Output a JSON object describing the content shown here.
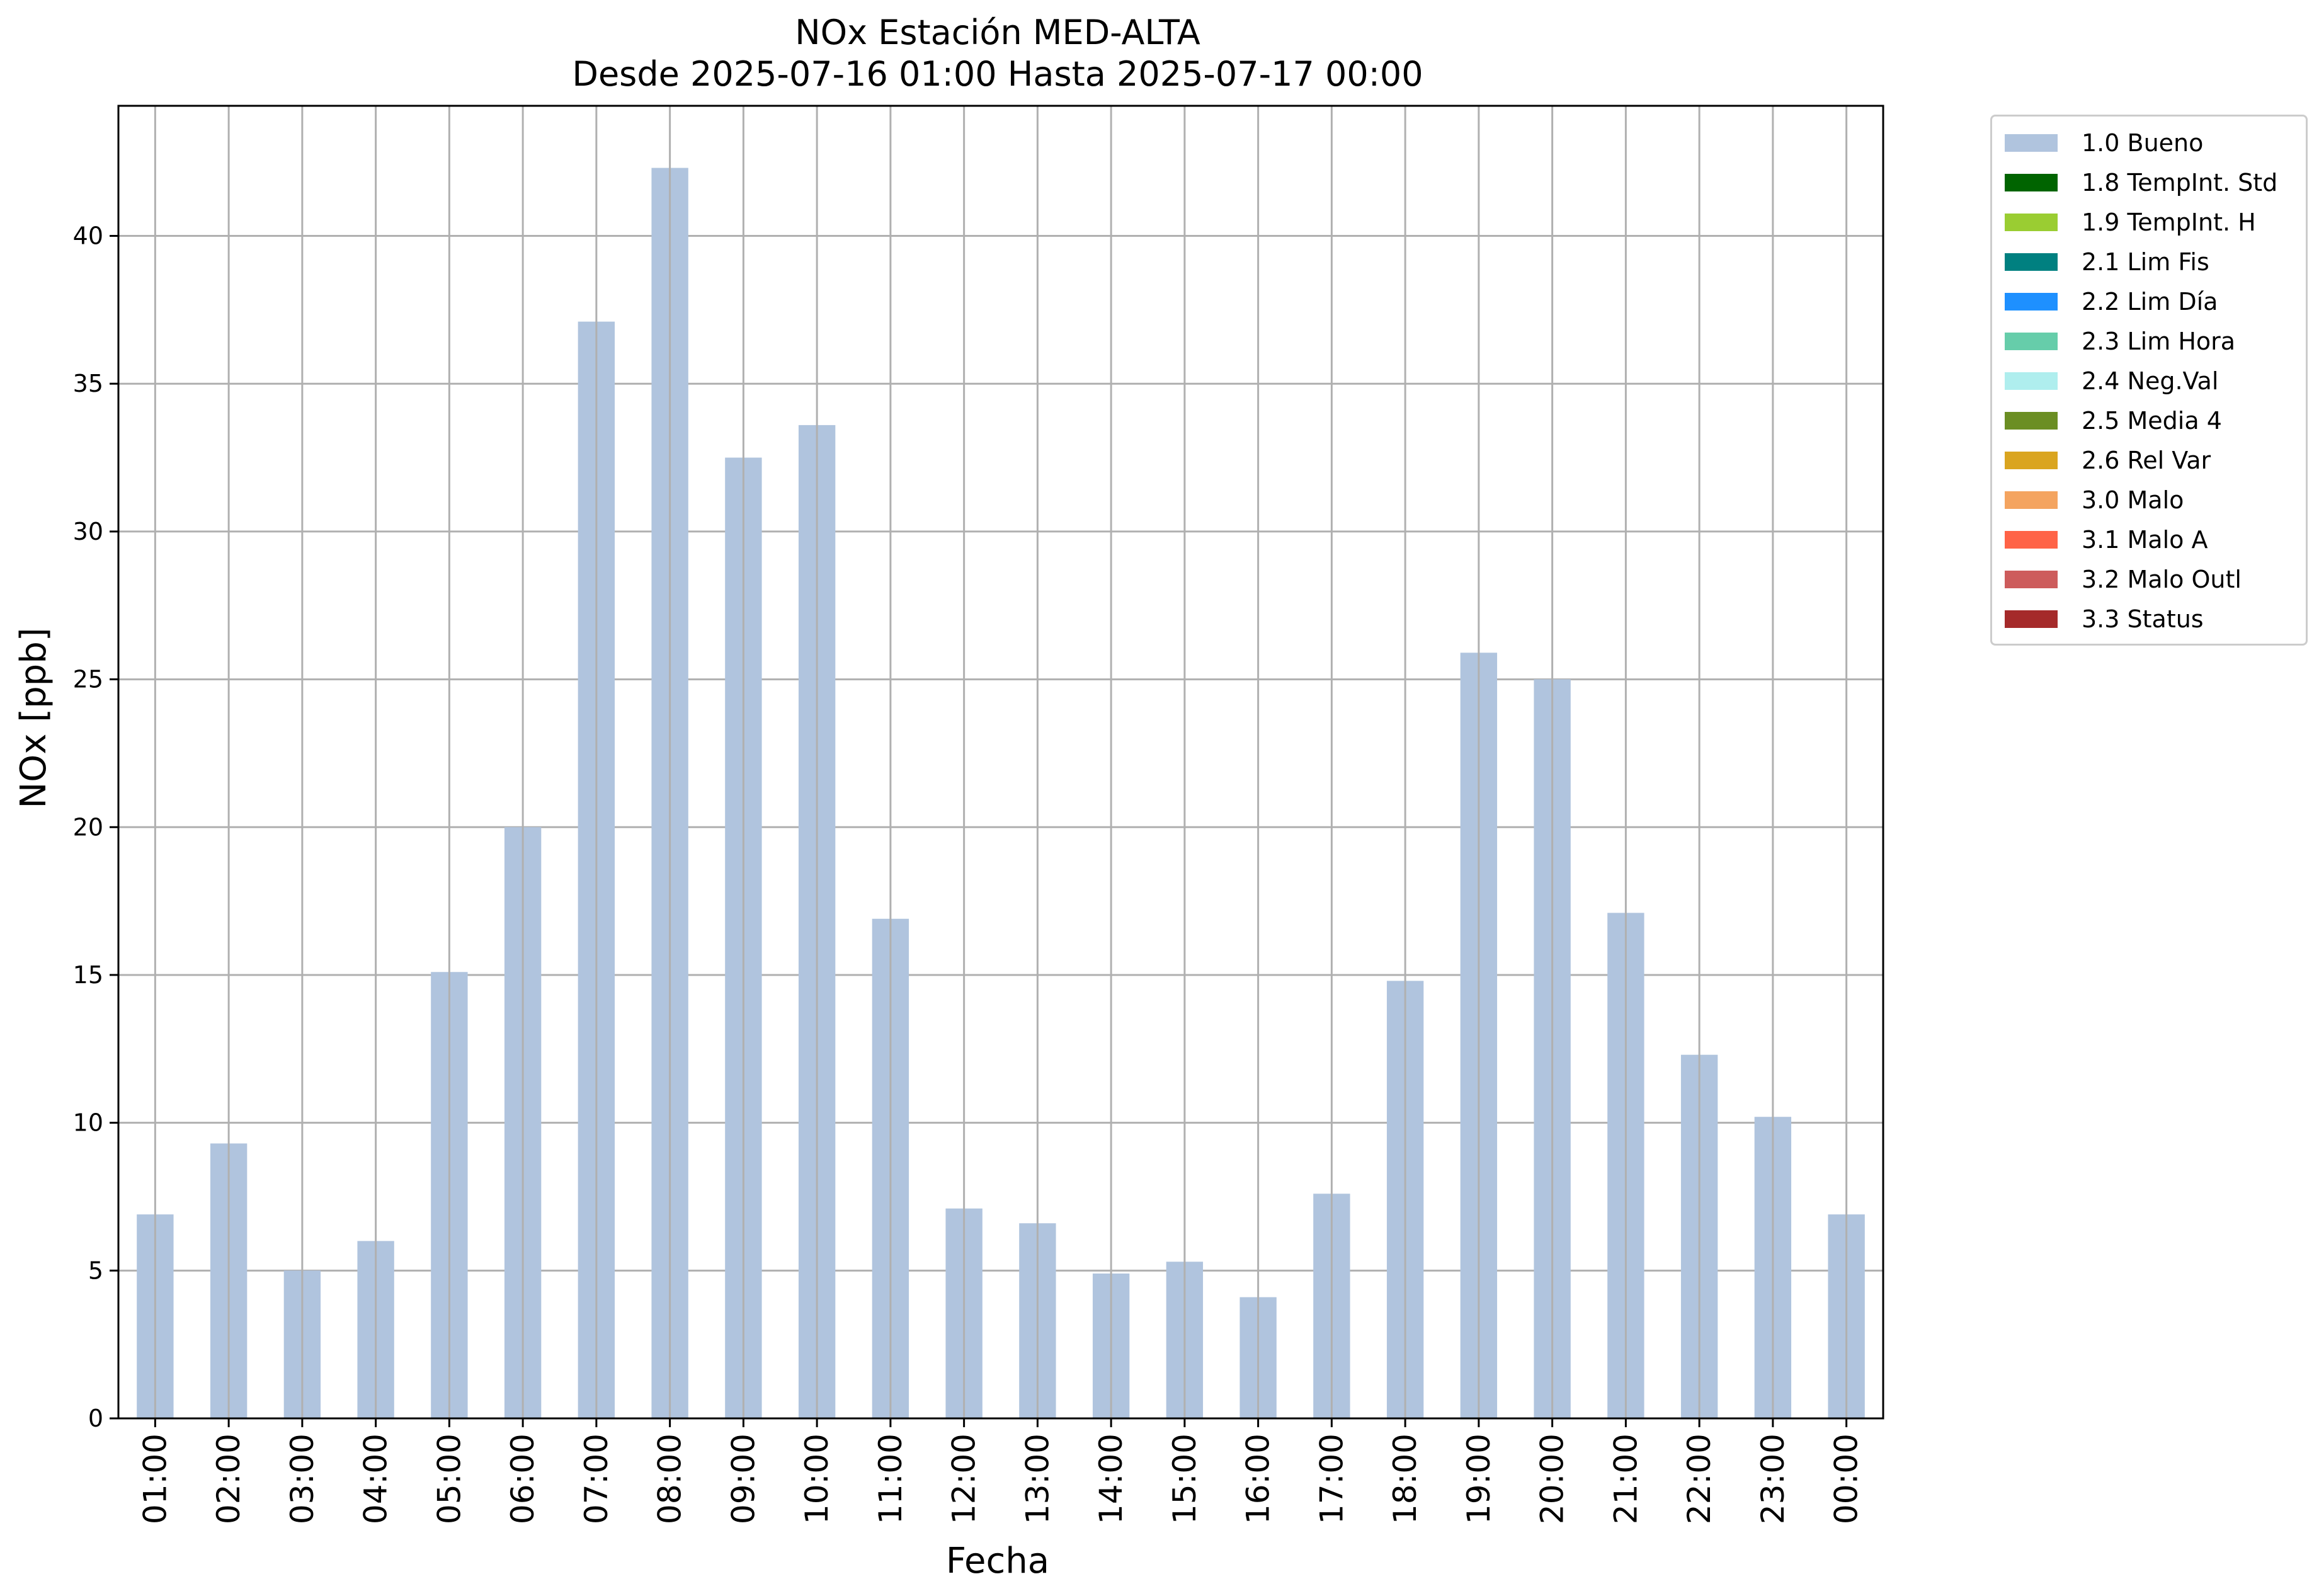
{
  "chart_data": {
    "type": "bar",
    "title": "NOx Estación MED-ALTA",
    "subtitle": "Desde 2025-07-16 01:00 Hasta 2025-07-17 00:00",
    "xlabel": "Fecha",
    "ylabel": "NOx [ppb]",
    "ylim": [
      0,
      44.4
    ],
    "yticks": [
      0,
      5,
      10,
      15,
      20,
      25,
      30,
      35,
      40
    ],
    "grid": true,
    "legend_position": "outside-top-right",
    "categories": [
      "01:00",
      "02:00",
      "03:00",
      "04:00",
      "05:00",
      "06:00",
      "07:00",
      "08:00",
      "09:00",
      "10:00",
      "11:00",
      "12:00",
      "13:00",
      "14:00",
      "15:00",
      "16:00",
      "17:00",
      "18:00",
      "19:00",
      "20:00",
      "21:00",
      "22:00",
      "23:00",
      "00:00"
    ],
    "series": [
      {
        "name": "1.0 Bueno",
        "color": "#b0c4de",
        "values": [
          6.9,
          9.3,
          5.0,
          6.0,
          15.1,
          20.0,
          37.1,
          42.3,
          32.5,
          33.6,
          16.9,
          7.1,
          6.6,
          4.9,
          5.3,
          4.1,
          7.6,
          14.8,
          25.9,
          25.0,
          17.1,
          12.3,
          10.2,
          6.9
        ]
      }
    ],
    "legend": [
      {
        "label": "1.0 Bueno",
        "color": "#b0c4de"
      },
      {
        "label": "1.8 TempInt. Std",
        "color": "#006400"
      },
      {
        "label": "1.9 TempInt. H",
        "color": "#9acd32"
      },
      {
        "label": "2.1 Lim Fis",
        "color": "#008080"
      },
      {
        "label": "2.2 Lim Día",
        "color": "#1e90ff"
      },
      {
        "label": "2.3 Lim Hora",
        "color": "#66cdaa"
      },
      {
        "label": "2.4 Neg.Val",
        "color": "#afeeee"
      },
      {
        "label": "2.5 Media 4",
        "color": "#6b8e23"
      },
      {
        "label": "2.6 Rel Var",
        "color": "#daa520"
      },
      {
        "label": "3.0 Malo",
        "color": "#f4a460"
      },
      {
        "label": "3.1 Malo A",
        "color": "#ff6347"
      },
      {
        "label": "3.2 Malo Outl",
        "color": "#cd5c5c"
      },
      {
        "label": "3.3 Status",
        "color": "#a52a2a"
      }
    ]
  }
}
